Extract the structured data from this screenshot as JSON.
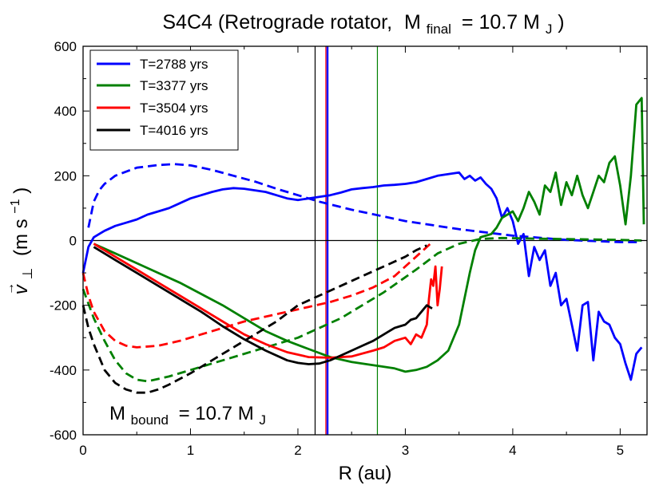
{
  "chart_data": {
    "type": "line",
    "title": {
      "main": "S4C4 (Retrograde rotator,",
      "mass_symbol": "M",
      "mass_sub": "final",
      "mass_value": "= 10.7 M",
      "mass_unit_sub": "J",
      "close": ")"
    },
    "xlabel": "R (au)",
    "ylabel": {
      "symbol": "v",
      "arrow": "→",
      "sub": "⊥",
      "text": "(m s",
      "sup": "−1",
      "close": ")"
    },
    "xlim": [
      0,
      5.25
    ],
    "ylim": [
      -600,
      600
    ],
    "xticks": [
      0,
      1,
      2,
      3,
      4,
      5
    ],
    "yticks": [
      -600,
      -400,
      -200,
      0,
      200,
      400,
      600
    ],
    "xtick_labels": [
      "0",
      "1",
      "2",
      "3",
      "4",
      "5"
    ],
    "ytick_labels": [
      "-600",
      "-400",
      "-200",
      "0",
      "200",
      "400",
      "600"
    ],
    "zero_line": 0,
    "annotation": {
      "symbol": "M",
      "sub": "bound",
      "value": "= 10.7 M",
      "unit_sub": "J"
    },
    "vlines": [
      {
        "x": 2.16,
        "color": "#000000"
      },
      {
        "x": 2.26,
        "color": "#ff0000"
      },
      {
        "x": 2.27,
        "color": "#0000ff"
      },
      {
        "x": 2.28,
        "color": "#0000ff"
      },
      {
        "x": 2.74,
        "color": "#008000"
      }
    ],
    "legend": {
      "position": "top-left",
      "entries": [
        {
          "label": "T=2788 yrs",
          "color": "#0000ff"
        },
        {
          "label": "T=3377 yrs",
          "color": "#008000"
        },
        {
          "label": "T=3504 yrs",
          "color": "#ff0000"
        },
        {
          "label": "T=4016 yrs",
          "color": "#000000"
        }
      ]
    },
    "series": [
      {
        "name": "T=2788 yrs",
        "color": "#0000ff",
        "style": "solid",
        "x": [
          0,
          0.05,
          0.1,
          0.2,
          0.3,
          0.4,
          0.5,
          0.6,
          0.7,
          0.8,
          0.9,
          1.0,
          1.1,
          1.2,
          1.3,
          1.4,
          1.5,
          1.6,
          1.7,
          1.8,
          1.9,
          2.0,
          2.1,
          2.2,
          2.3,
          2.4,
          2.5,
          2.6,
          2.7,
          2.8,
          2.9,
          3.0,
          3.1,
          3.2,
          3.3,
          3.4,
          3.5,
          3.55,
          3.6,
          3.65,
          3.7,
          3.75,
          3.8,
          3.85,
          3.9,
          3.95,
          4.0,
          4.05,
          4.1,
          4.15,
          4.2,
          4.25,
          4.3,
          4.35,
          4.4,
          4.45,
          4.5,
          4.55,
          4.6,
          4.65,
          4.7,
          4.75,
          4.8,
          4.85,
          4.9,
          4.95,
          5.0,
          5.05,
          5.1,
          5.15,
          5.2
        ],
        "y": [
          -100,
          -20,
          10,
          30,
          45,
          55,
          65,
          80,
          90,
          100,
          115,
          130,
          140,
          150,
          158,
          162,
          160,
          155,
          150,
          140,
          130,
          125,
          130,
          135,
          140,
          148,
          158,
          162,
          165,
          170,
          172,
          175,
          180,
          190,
          200,
          205,
          210,
          190,
          200,
          185,
          195,
          175,
          160,
          130,
          70,
          100,
          60,
          -10,
          20,
          -110,
          -20,
          -60,
          -30,
          -140,
          -100,
          -200,
          -180,
          -260,
          -340,
          -200,
          -190,
          -370,
          -220,
          -250,
          -260,
          -300,
          -320,
          -380,
          -430,
          -350,
          -330
        ]
      },
      {
        "name": "T=2788 yrs",
        "color": "#0000ff",
        "style": "dashed",
        "x": [
          0.05,
          0.1,
          0.15,
          0.2,
          0.3,
          0.5,
          0.7,
          0.85,
          1.0,
          1.2,
          1.4,
          1.6,
          1.8,
          2.0,
          2.2,
          2.5,
          3.0,
          3.5,
          4.0,
          4.5,
          5.0,
          5.2
        ],
        "y": [
          40,
          120,
          155,
          175,
          200,
          225,
          233,
          236,
          232,
          218,
          200,
          182,
          160,
          140,
          120,
          95,
          60,
          35,
          15,
          2,
          -5,
          -5
        ]
      },
      {
        "name": "T=3377 yrs",
        "color": "#008000",
        "style": "solid",
        "x": [
          0.1,
          0.3,
          0.5,
          0.7,
          0.9,
          1.1,
          1.3,
          1.5,
          1.7,
          1.9,
          2.1,
          2.3,
          2.5,
          2.7,
          2.9,
          3.0,
          3.1,
          3.2,
          3.3,
          3.4,
          3.5,
          3.6,
          3.65,
          3.7,
          3.8,
          3.85,
          3.9,
          3.95,
          4.0,
          4.05,
          4.1,
          4.15,
          4.2,
          4.25,
          4.3,
          4.35,
          4.4,
          4.45,
          4.5,
          4.55,
          4.6,
          4.65,
          4.7,
          4.75,
          4.8,
          4.85,
          4.9,
          4.95,
          5.0,
          5.05,
          5.1,
          5.15,
          5.2,
          5.22
        ],
        "y": [
          -10,
          -40,
          -70,
          -100,
          -130,
          -165,
          -200,
          -240,
          -280,
          -310,
          -335,
          -360,
          -375,
          -385,
          -395,
          -405,
          -400,
          -390,
          -370,
          -340,
          -260,
          -100,
          -30,
          10,
          20,
          40,
          70,
          80,
          90,
          60,
          100,
          150,
          120,
          80,
          170,
          150,
          210,
          110,
          180,
          140,
          200,
          140,
          100,
          150,
          200,
          180,
          240,
          260,
          170,
          50,
          200,
          420,
          440,
          50
        ]
      },
      {
        "name": "T=3377 yrs",
        "color": "#008000",
        "style": "dashed",
        "x": [
          0,
          0.1,
          0.2,
          0.3,
          0.4,
          0.5,
          0.6,
          0.8,
          1.0,
          1.3,
          1.6,
          2.0,
          2.4,
          2.8,
          3.1,
          3.3,
          3.5,
          3.7,
          3.9,
          4.2,
          4.6,
          5.0,
          5.2
        ],
        "y": [
          -150,
          -240,
          -310,
          -370,
          -410,
          -430,
          -435,
          -420,
          -400,
          -370,
          -340,
          -300,
          -240,
          -160,
          -90,
          -40,
          -10,
          5,
          8,
          6,
          4,
          2,
          0
        ]
      },
      {
        "name": "T=3504 yrs",
        "color": "#ff0000",
        "style": "solid",
        "x": [
          0.1,
          0.3,
          0.5,
          0.7,
          0.9,
          1.1,
          1.3,
          1.5,
          1.7,
          1.9,
          2.1,
          2.3,
          2.5,
          2.7,
          2.8,
          2.9,
          3.0,
          3.05,
          3.1,
          3.15,
          3.2,
          3.22,
          3.24,
          3.26,
          3.28,
          3.3,
          3.32,
          3.34
        ],
        "y": [
          -10,
          -50,
          -90,
          -130,
          -170,
          -210,
          -250,
          -290,
          -320,
          -345,
          -360,
          -362,
          -358,
          -340,
          -330,
          -310,
          -300,
          -320,
          -290,
          -300,
          -260,
          -180,
          -120,
          -140,
          -80,
          -200,
          -150,
          -80
        ]
      },
      {
        "name": "T=3504 yrs",
        "color": "#ff0000",
        "style": "dashed",
        "x": [
          0,
          0.05,
          0.1,
          0.2,
          0.3,
          0.4,
          0.5,
          0.7,
          0.9,
          1.1,
          1.3,
          1.5,
          1.7,
          1.9,
          2.1,
          2.3,
          2.5,
          2.7,
          2.9,
          3.0,
          3.1,
          3.2,
          3.25
        ],
        "y": [
          -100,
          -170,
          -220,
          -280,
          -310,
          -325,
          -330,
          -325,
          -310,
          -290,
          -270,
          -250,
          -235,
          -220,
          -205,
          -190,
          -170,
          -145,
          -110,
          -80,
          -50,
          -20,
          -5
        ]
      },
      {
        "name": "T=4016 yrs",
        "color": "#000000",
        "style": "solid",
        "x": [
          0.1,
          0.3,
          0.5,
          0.7,
          0.9,
          1.1,
          1.3,
          1.5,
          1.7,
          1.9,
          2.0,
          2.1,
          2.2,
          2.3,
          2.4,
          2.5,
          2.6,
          2.7,
          2.8,
          2.85,
          2.9,
          2.95,
          3.0,
          3.05,
          3.1,
          3.15,
          3.2,
          3.25
        ],
        "y": [
          -20,
          -60,
          -100,
          -140,
          -180,
          -220,
          -265,
          -305,
          -340,
          -370,
          -378,
          -382,
          -380,
          -370,
          -355,
          -340,
          -325,
          -310,
          -290,
          -280,
          -270,
          -265,
          -260,
          -245,
          -240,
          -220,
          -200,
          -210
        ]
      },
      {
        "name": "T=4016 yrs",
        "color": "#000000",
        "style": "dashed",
        "x": [
          0,
          0.05,
          0.1,
          0.15,
          0.2,
          0.3,
          0.4,
          0.5,
          0.6,
          0.7,
          0.8,
          1.0,
          1.2,
          1.4,
          1.6,
          1.8,
          2.0,
          2.2,
          2.4,
          2.6,
          2.8,
          3.0,
          3.1,
          3.2
        ],
        "y": [
          -200,
          -270,
          -320,
          -360,
          -400,
          -440,
          -460,
          -470,
          -470,
          -460,
          -445,
          -410,
          -370,
          -330,
          -290,
          -250,
          -200,
          -170,
          -140,
          -110,
          -80,
          -50,
          -30,
          -15
        ]
      }
    ]
  }
}
